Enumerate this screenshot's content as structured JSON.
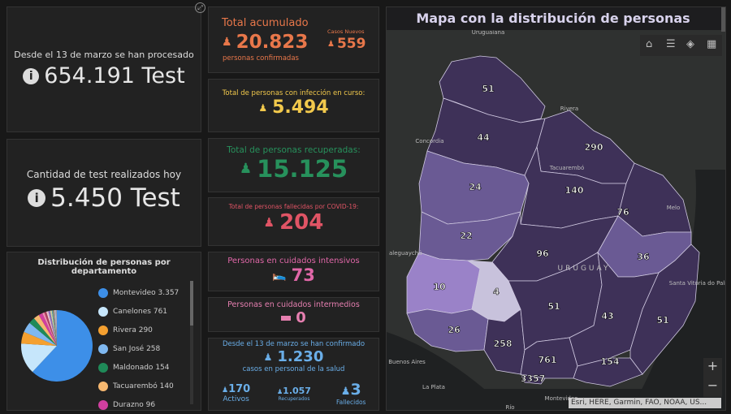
{
  "panels": {
    "test_total": {
      "label": "Desde el 13 de marzo se han procesado",
      "value": "654.191 Test"
    },
    "test_today": {
      "label": "Cantidad de test realizados hoy",
      "value": "5.450 Test"
    },
    "acumulado": {
      "label": "Total acumulado",
      "value": "20.823",
      "sub": "personas confirmadas",
      "new_label": "Casos Nuevos",
      "new_value": "559",
      "color": "#e8774a"
    },
    "en_curso": {
      "label": "Total de personas con infección en curso:",
      "value": "5.494",
      "color": "#f2c94c"
    },
    "recuperadas": {
      "label": "Total de personas recuperadas:",
      "value": "15.125",
      "color": "#27915c"
    },
    "fallecidas": {
      "label": "Total de personas fallecidas por COVID-19:",
      "value": "204",
      "color": "#e05465"
    },
    "intensivos": {
      "label": "Personas en cuidados intensivos",
      "value": "73",
      "color": "#e067a8"
    },
    "intermedios": {
      "label": "Personas en cuidados intermedios",
      "value": "0",
      "color": "#e67fb0"
    },
    "salud": {
      "label": "Desde el 13 de marzo se han confirmado",
      "value": "1.230",
      "sub": "casos en personal de la salud",
      "activos": "170",
      "activos_label": "Activos",
      "recuperados": "1.057",
      "recuperados_label": "Recuperados",
      "fallecidos": "3",
      "fallecidos_label": "Fallecidos",
      "color": "#6aaee8"
    }
  },
  "chart_data": {
    "type": "pie",
    "title": "Distribución de personas por departamento",
    "legend": [
      {
        "name": "Montevideo",
        "value": "3.357",
        "color": "#3d8fe8"
      },
      {
        "name": "Canelones",
        "value": "761",
        "color": "#c6e6fb"
      },
      {
        "name": "Rivera",
        "value": "290",
        "color": "#f4a030"
      },
      {
        "name": "San José",
        "value": "258",
        "color": "#7fb8f0"
      },
      {
        "name": "Maldonado",
        "value": "154",
        "color": "#1f8a58"
      },
      {
        "name": "Tacuarembó",
        "value": "140",
        "color": "#f6b870"
      },
      {
        "name": "Durazno",
        "value": "96",
        "color": "#d13fa0"
      }
    ],
    "values": [
      3357,
      761,
      290,
      258,
      154,
      140,
      96,
      51,
      51,
      51,
      44,
      43,
      36,
      26,
      24,
      22,
      10,
      4
    ],
    "colors": [
      "#3d8fe8",
      "#c6e6fb",
      "#f4a030",
      "#7fb8f0",
      "#1f8a58",
      "#f6b870",
      "#d13fa0",
      "#f08fb0",
      "#b04060",
      "#e8c0d0",
      "#8a6ac0",
      "#d0d0a0",
      "#60a0a0",
      "#c08060",
      "#a0d0e0",
      "#e0a0c0",
      "#80c0a0",
      "#f0f0f0"
    ]
  },
  "map": {
    "title": "Mapa con la distribución de personas",
    "attribution": "Esri, HERE, Garmin, FAO, NOAA, US...",
    "zoom_in": "+",
    "zoom_out": "−",
    "places": [
      "Uruguaiana",
      "Rivera",
      "Concordia",
      "Tacuarembó",
      "Melo",
      "aleguaychú",
      "URUGUAY",
      "Santa Vitória do Palmar",
      "Buenos Aires",
      "La Plata",
      "Montevideo",
      "Río"
    ],
    "counts": [
      "51",
      "44",
      "290",
      "140",
      "76",
      "24",
      "22",
      "96",
      "36",
      "10",
      "4",
      "26",
      "258",
      "51",
      "43",
      "51",
      "761",
      "154",
      "3357"
    ]
  }
}
